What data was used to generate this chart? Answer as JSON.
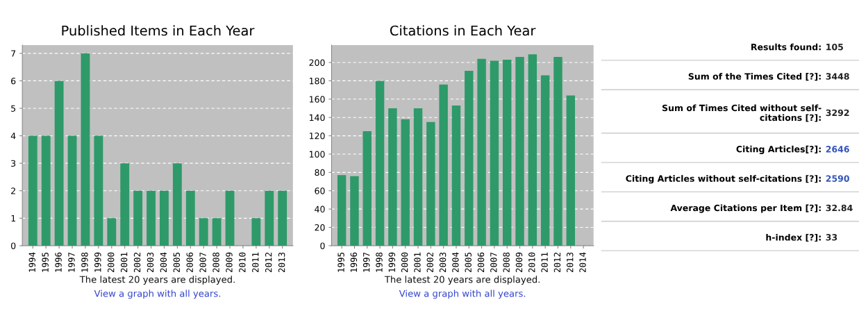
{
  "chart_data": [
    {
      "type": "bar",
      "title": "Published Items in Each Year",
      "color": "#2e9a69",
      "categories": [
        "1994",
        "1995",
        "1996",
        "1997",
        "1998",
        "1999",
        "2000",
        "2001",
        "2002",
        "2003",
        "2004",
        "2005",
        "2006",
        "2007",
        "2008",
        "2009",
        "2010",
        "2011",
        "2012",
        "2013"
      ],
      "values": [
        4,
        4,
        6,
        4,
        7,
        4,
        1,
        3,
        2,
        2,
        2,
        3,
        2,
        1,
        1,
        2,
        0,
        1,
        2,
        2
      ],
      "ylim": [
        0,
        7.3
      ],
      "yticks": [
        0,
        1,
        2,
        3,
        4,
        5,
        6,
        7
      ],
      "grid": "y",
      "annotations": [
        "The latest 20 years are displayed.",
        "View a graph with all years."
      ]
    },
    {
      "type": "bar",
      "title": "Citations in Each Year",
      "color": "#2e9a69",
      "categories": [
        "1995",
        "1996",
        "1997",
        "1998",
        "1999",
        "2000",
        "2001",
        "2002",
        "2003",
        "2004",
        "2005",
        "2006",
        "2007",
        "2008",
        "2009",
        "2010",
        "2011",
        "2012",
        "2013",
        "2014"
      ],
      "values": [
        77,
        76,
        125,
        180,
        150,
        138,
        150,
        135,
        176,
        153,
        191,
        204,
        202,
        203,
        206,
        209,
        186,
        206,
        164,
        null
      ],
      "ylim": [
        0,
        219
      ],
      "yticks": [
        0,
        20,
        40,
        60,
        80,
        100,
        120,
        140,
        160,
        180,
        200
      ],
      "grid": "y",
      "annotations": [
        "The latest 20 years are displayed.",
        "View a graph with all years."
      ]
    },
    {
      "type": "other",
      "annotations": [
        "Results found:",
        "105",
        "Sum of the Times Cited [?]:",
        "3448",
        "Sum of Times Cited without self-\ncitations [?]:",
        "3292",
        "Citing Articles[?]:",
        "2646",
        "Citing Articles without self-citations [?]:",
        "2590",
        "Average Citations per Item [?]:",
        "32.84",
        "h-index [?]:",
        "33"
      ],
      "colors": [
        "#222222",
        "#222222",
        "#222222",
        "#3355bb",
        "#3355bb",
        "#222222",
        "#222222"
      ]
    }
  ]
}
